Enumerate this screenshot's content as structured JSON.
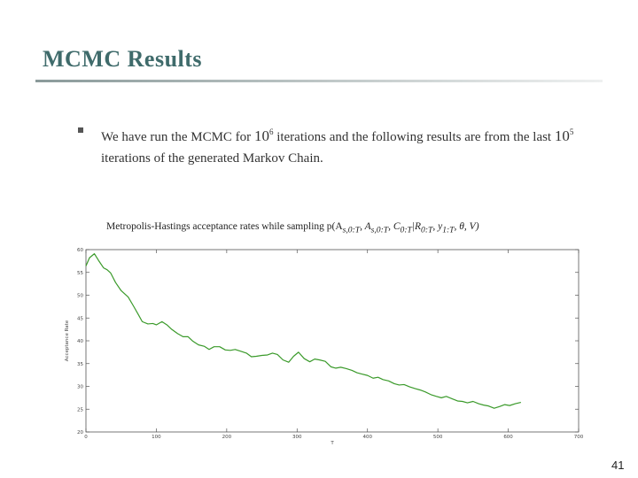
{
  "slide": {
    "title": "MCMC Results",
    "bullet_parts": [
      "We have run the MCMC for ",
      "10",
      "6",
      " iterations and the following results are from the last ",
      "10",
      "5",
      " iterations of the generated Markov Chain."
    ],
    "page_number": "41"
  },
  "chart_data": {
    "type": "line",
    "title": "Metropolis-Hastings acceptance rates while sampling p(A",
    "title_math_parts": [
      "s,0:T",
      ", A",
      "s,0:T",
      ", C",
      "0:T",
      "|R",
      "0:T",
      ", y",
      "1:T",
      ", θ, V)"
    ],
    "xlabel": "T",
    "ylabel": "Acceptance Rate",
    "xlim": [
      0,
      700
    ],
    "ylim": [
      20,
      60
    ],
    "xticks": [
      "0",
      "100",
      "200",
      "300",
      "400",
      "500",
      "600",
      "700"
    ],
    "yticks": [
      "20",
      "25",
      "30",
      "35",
      "40",
      "45",
      "50",
      "55",
      "60"
    ],
    "grid": false,
    "line_color": "#3a9a2a",
    "series": [
      {
        "x": [
          0,
          5,
          12,
          18,
          25,
          30,
          35,
          42,
          50,
          55,
          60,
          68,
          75,
          80,
          88,
          95,
          100,
          108,
          115,
          122,
          130,
          138,
          145,
          152,
          160,
          168,
          175,
          182,
          190,
          198,
          205,
          212,
          220,
          228,
          235,
          242,
          250,
          258,
          265,
          272,
          280,
          288,
          295,
          302,
          310,
          318,
          325,
          332,
          340,
          348,
          355,
          362,
          370,
          378,
          385,
          392,
          400,
          408,
          415,
          422,
          430,
          438,
          445,
          452,
          460,
          468,
          475,
          482,
          490,
          498,
          505,
          512,
          520,
          528,
          535,
          542,
          550,
          558,
          565,
          572,
          580,
          588,
          595,
          602,
          610,
          618
        ],
        "y": [
          56.4,
          58.2,
          59.1,
          57.6,
          56.0,
          55.6,
          54.9,
          52.8,
          51.0,
          50.3,
          49.6,
          47.5,
          45.6,
          44.2,
          43.7,
          43.8,
          43.5,
          44.2,
          43.5,
          42.5,
          41.6,
          40.9,
          40.9,
          39.9,
          39.1,
          38.8,
          38.1,
          38.7,
          38.7,
          38.0,
          37.9,
          38.1,
          37.7,
          37.3,
          36.5,
          36.6,
          36.8,
          36.9,
          37.3,
          37.0,
          35.8,
          35.3,
          36.6,
          37.5,
          36.1,
          35.4,
          36.0,
          35.8,
          35.5,
          34.3,
          34.0,
          34.2,
          33.9,
          33.5,
          33.0,
          32.7,
          32.4,
          31.8,
          32.0,
          31.5,
          31.2,
          30.6,
          30.3,
          30.4,
          29.9,
          29.5,
          29.2,
          28.8,
          28.2,
          27.8,
          27.5,
          27.8,
          27.3,
          26.8,
          26.7,
          26.4,
          26.7,
          26.2,
          25.9,
          25.7,
          25.2,
          25.6,
          26.0,
          25.8,
          26.2,
          26.5
        ]
      }
    ]
  }
}
